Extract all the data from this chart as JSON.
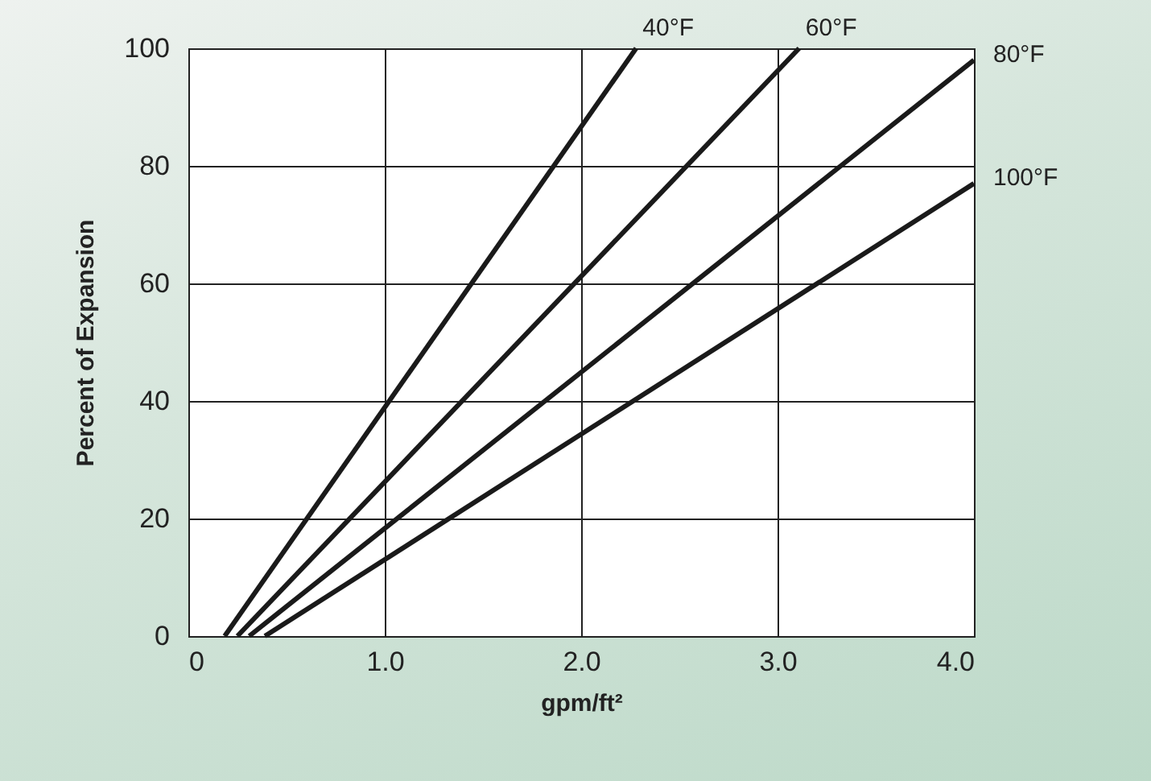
{
  "chart_data": {
    "type": "line",
    "xlabel": "gpm/ft²",
    "ylabel": "Percent of Expansion",
    "xlim": [
      0,
      4
    ],
    "ylim": [
      0,
      100
    ],
    "xticks": [
      0,
      {
        "value": 1,
        "label": "1.0"
      },
      {
        "value": 2,
        "label": "2.0"
      },
      {
        "value": 3,
        "label": "3.0"
      },
      {
        "value": 4,
        "label": "4.0"
      }
    ],
    "yticks": [
      0,
      20,
      40,
      60,
      80,
      100
    ],
    "grid": true,
    "legend": false,
    "marker": "none",
    "line_style": "solid",
    "series": [
      {
        "name": "40°F",
        "color": "#1a1a1a",
        "x": [
          0.185,
          2.28
        ],
        "values": [
          0,
          100
        ]
      },
      {
        "name": "60°F",
        "color": "#1a1a1a",
        "x": [
          0.25,
          3.11
        ],
        "values": [
          0,
          100
        ]
      },
      {
        "name": "80°F",
        "color": "#1a1a1a",
        "x": [
          0.31,
          4
        ],
        "values": [
          0,
          98
        ]
      },
      {
        "name": "100°F",
        "color": "#1a1a1a",
        "x": [
          0.39,
          4
        ],
        "values": [
          0,
          77
        ]
      }
    ]
  }
}
